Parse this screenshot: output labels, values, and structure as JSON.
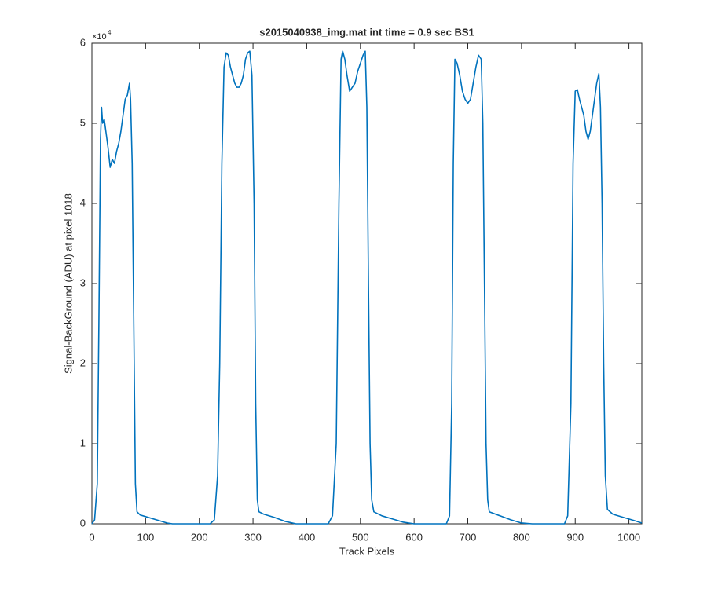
{
  "chart_data": {
    "type": "line",
    "title": "s2015040938_img.mat int time = 0.9 sec   BS1",
    "x_label": "Track Pixels",
    "y_label": "Signal-BackGround (ADU) at pixel 1018",
    "y_multiplier": {
      "base": "×10",
      "exponent": "4"
    },
    "xlim": [
      0,
      1024
    ],
    "xticks": [
      0,
      100,
      200,
      300,
      400,
      500,
      600,
      700,
      800,
      900,
      1000
    ],
    "ylim": [
      0,
      6
    ],
    "yticks": [
      0,
      1,
      2,
      3,
      4,
      5,
      6
    ],
    "x": [
      0,
      5,
      10,
      13,
      16,
      18,
      20,
      23,
      26,
      30,
      34,
      38,
      42,
      46,
      50,
      54,
      58,
      62,
      66,
      70,
      72,
      75,
      78,
      81,
      84,
      90,
      100,
      120,
      140,
      150,
      220,
      228,
      234,
      238,
      242,
      246,
      250,
      254,
      258,
      262,
      266,
      270,
      274,
      278,
      282,
      286,
      290,
      294,
      298,
      302,
      305,
      308,
      311,
      320,
      340,
      360,
      380,
      440,
      448,
      455,
      460,
      464,
      467,
      471,
      475,
      480,
      485,
      490,
      495,
      500,
      505,
      509,
      512,
      515,
      518,
      521,
      525,
      540,
      560,
      580,
      600,
      660,
      666,
      670,
      673,
      676,
      680,
      685,
      690,
      695,
      700,
      705,
      710,
      715,
      720,
      725,
      728,
      731,
      734,
      737,
      740,
      760,
      780,
      800,
      820,
      880,
      886,
      892,
      896,
      900,
      904,
      908,
      912,
      916,
      920,
      924,
      928,
      932,
      936,
      940,
      944,
      947,
      950,
      953,
      956,
      960,
      970,
      990,
      1010,
      1024
    ],
    "series": [
      {
        "color": "#0072bd",
        "values": [
          0,
          0.05,
          0.5,
          2.5,
          4.8,
          5.2,
          5.0,
          5.05,
          4.9,
          4.7,
          4.45,
          4.55,
          4.5,
          4.65,
          4.75,
          4.9,
          5.1,
          5.3,
          5.35,
          5.5,
          5.3,
          4.5,
          2.5,
          0.5,
          0.15,
          0.11,
          0.09,
          0.05,
          0.01,
          0,
          0,
          0.05,
          0.6,
          2.0,
          4.5,
          5.7,
          5.88,
          5.85,
          5.7,
          5.6,
          5.5,
          5.45,
          5.45,
          5.5,
          5.6,
          5.8,
          5.88,
          5.9,
          5.6,
          4.0,
          1.5,
          0.3,
          0.15,
          0.12,
          0.08,
          0.03,
          0,
          0,
          0.1,
          1.0,
          4.0,
          5.8,
          5.9,
          5.8,
          5.6,
          5.4,
          5.45,
          5.5,
          5.65,
          5.75,
          5.85,
          5.9,
          5.2,
          3.0,
          1.0,
          0.3,
          0.15,
          0.1,
          0.06,
          0.02,
          0,
          0,
          0.1,
          1.5,
          4.5,
          5.8,
          5.75,
          5.6,
          5.4,
          5.3,
          5.25,
          5.3,
          5.5,
          5.7,
          5.85,
          5.8,
          5.0,
          3.0,
          1.0,
          0.3,
          0.15,
          0.1,
          0.05,
          0.01,
          0,
          0,
          0.1,
          1.5,
          4.5,
          5.4,
          5.42,
          5.3,
          5.2,
          5.1,
          4.9,
          4.8,
          4.9,
          5.1,
          5.3,
          5.5,
          5.62,
          5.2,
          4.0,
          2.0,
          0.6,
          0.18,
          0.12,
          0.08,
          0.04,
          0.01
        ]
      }
    ]
  }
}
